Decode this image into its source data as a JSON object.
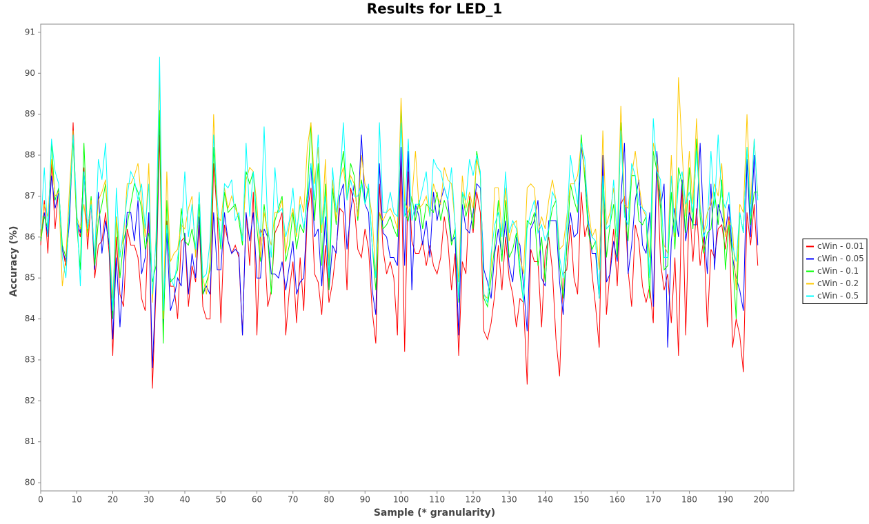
{
  "chart_data": {
    "type": "line",
    "title": "Results for LED_1",
    "x_label": "Sample (* granularity)",
    "y_label": "Accuracy (%)",
    "xlim": [
      0,
      209
    ],
    "ylim": [
      79.8,
      91.2
    ],
    "xticks": [
      0,
      10,
      20,
      30,
      40,
      50,
      60,
      70,
      80,
      90,
      100,
      110,
      120,
      130,
      140,
      150,
      160,
      170,
      180,
      190,
      200
    ],
    "yticks": [
      80,
      81,
      82,
      83,
      84,
      85,
      86,
      87,
      88,
      89,
      90,
      91
    ],
    "grid": false,
    "legend": "right",
    "x": [
      0,
      1,
      2,
      3,
      4,
      5,
      6,
      7,
      8,
      9,
      10,
      11,
      12,
      13,
      14,
      15,
      16,
      17,
      18,
      19,
      20,
      21,
      22,
      23,
      24,
      25,
      26,
      27,
      28,
      29,
      30,
      31,
      32,
      33,
      34,
      35,
      36,
      37,
      38,
      39,
      40,
      41,
      42,
      43,
      44,
      45,
      46,
      47,
      48,
      49,
      50,
      51,
      52,
      53,
      54,
      55,
      56,
      57,
      58,
      59,
      60,
      61,
      62,
      63,
      64,
      65,
      66,
      67,
      68,
      69,
      70,
      71,
      72,
      73,
      74,
      75,
      76,
      77,
      78,
      79,
      80,
      81,
      82,
      83,
      84,
      85,
      86,
      87,
      88,
      89,
      90,
      91,
      92,
      93,
      94,
      95,
      96,
      97,
      98,
      99,
      100,
      101,
      102,
      103,
      104,
      105,
      106,
      107,
      108,
      109,
      110,
      111,
      112,
      113,
      114,
      115,
      116,
      117,
      118,
      119,
      120,
      121,
      122,
      123,
      124,
      125,
      126,
      127,
      128,
      129,
      130,
      131,
      132,
      133,
      134,
      135,
      136,
      137,
      138,
      139,
      140,
      141,
      142,
      143,
      144,
      145,
      146,
      147,
      148,
      149,
      150,
      151,
      152,
      153,
      154,
      155,
      156,
      157,
      158,
      159,
      160,
      161,
      162,
      163,
      164,
      165,
      166,
      167,
      168,
      169,
      170,
      171,
      172,
      173,
      174,
      175,
      176,
      177,
      178,
      179,
      180,
      181,
      182,
      183,
      184,
      185,
      186,
      187,
      188,
      189,
      190,
      191,
      192,
      193,
      194,
      195,
      196,
      197,
      198,
      199
    ],
    "series": [
      {
        "name": "cWin - 0.01",
        "color": "#ff0000",
        "values": [
          85.8,
          86.9,
          85.6,
          87.8,
          86.2,
          87.2,
          85.7,
          85.3,
          86.5,
          88.8,
          86.3,
          86.0,
          87.7,
          85.7,
          86.9,
          85.0,
          85.8,
          85.9,
          86.6,
          85.6,
          83.1,
          86.0,
          84.6,
          84.3,
          86.2,
          85.8,
          85.8,
          85.5,
          84.5,
          84.2,
          86.6,
          82.3,
          84.7,
          88.5,
          83.8,
          86.4,
          84.8,
          84.8,
          84.0,
          85.9,
          86.0,
          84.3,
          85.3,
          84.9,
          86.3,
          84.3,
          84.0,
          84.0,
          87.8,
          86.5,
          83.9,
          86.3,
          85.9,
          85.6,
          85.8,
          85.5,
          83.6,
          86.6,
          85.3,
          87.1,
          83.6,
          86.2,
          86.0,
          84.3,
          84.7,
          86.1,
          86.3,
          86.6,
          83.6,
          84.7,
          85.4,
          83.9,
          85.5,
          84.2,
          86.6,
          87.2,
          85.1,
          84.9,
          84.1,
          85.8,
          84.4,
          84.9,
          85.7,
          86.7,
          86.6,
          84.7,
          87.2,
          86.8,
          85.7,
          85.5,
          86.2,
          85.7,
          84.2,
          83.4,
          87.3,
          85.7,
          85.1,
          85.4,
          85.0,
          83.6,
          88.0,
          83.2,
          87.6,
          85.9,
          85.6,
          85.6,
          85.9,
          85.3,
          85.8,
          85.3,
          85.1,
          85.5,
          86.5,
          85.9,
          84.7,
          85.6,
          83.1,
          85.4,
          85.1,
          87.0,
          86.1,
          87.1,
          86.6,
          83.7,
          83.5,
          83.9,
          84.6,
          85.8,
          84.7,
          86.0,
          85.0,
          84.6,
          83.8,
          84.5,
          84.4,
          82.4,
          85.7,
          85.4,
          85.4,
          83.8,
          85.6,
          86.0,
          85.2,
          83.5,
          82.6,
          85.1,
          85.2,
          86.3,
          85.0,
          84.6,
          87.1,
          86.0,
          86.4,
          85.1,
          84.3,
          83.3,
          87.8,
          84.1,
          85.2,
          86.2,
          84.8,
          86.8,
          87.0,
          85.2,
          84.3,
          86.3,
          85.9,
          84.8,
          84.4,
          84.8,
          83.9,
          87.9,
          85.4,
          84.7,
          85.1,
          83.9,
          85.5,
          83.1,
          87.4,
          83.6,
          86.9,
          85.4,
          86.7,
          85.3,
          86.0,
          83.8,
          85.7,
          85.5,
          86.2,
          86.3,
          85.7,
          86.5,
          83.3,
          84.0,
          83.6,
          82.7,
          86.6,
          85.8,
          86.8,
          85.3
        ]
      },
      {
        "name": "cWin - 0.05",
        "color": "#0000ff",
        "values": [
          85.9,
          86.6,
          86.0,
          87.5,
          86.7,
          87.1,
          85.7,
          85.4,
          86.4,
          88.6,
          86.4,
          86.1,
          87.6,
          86.2,
          86.8,
          85.2,
          87.1,
          85.6,
          86.4,
          85.8,
          83.5,
          85.5,
          83.8,
          85.3,
          86.6,
          86.6,
          85.9,
          86.9,
          85.1,
          85.5,
          86.6,
          82.8,
          84.9,
          89.0,
          83.9,
          86.1,
          84.2,
          84.5,
          85.0,
          84.8,
          86.1,
          84.6,
          85.6,
          85.0,
          86.5,
          84.6,
          84.8,
          84.6,
          86.6,
          85.2,
          85.2,
          86.6,
          85.9,
          85.6,
          85.7,
          85.6,
          83.6,
          86.6,
          85.9,
          86.6,
          85.0,
          85.0,
          86.2,
          86.0,
          85.1,
          85.1,
          85.0,
          85.4,
          84.7,
          85.3,
          85.9,
          84.6,
          84.9,
          85.0,
          86.7,
          87.8,
          86.0,
          86.2,
          84.8,
          86.5,
          84.7,
          85.8,
          85.6,
          87.0,
          87.3,
          85.7,
          86.6,
          87.3,
          86.5,
          88.5,
          86.8,
          86.6,
          84.7,
          84.1,
          87.8,
          86.1,
          86.0,
          85.5,
          85.5,
          85.3,
          88.2,
          85.3,
          88.1,
          84.7,
          86.8,
          86.5,
          85.8,
          86.4,
          85.5,
          87.1,
          86.4,
          86.9,
          87.2,
          86.9,
          85.9,
          86.0,
          83.6,
          86.8,
          86.2,
          86.1,
          86.6,
          87.3,
          87.2,
          85.2,
          84.9,
          84.5,
          85.6,
          86.2,
          85.5,
          86.4,
          85.3,
          84.9,
          86.0,
          85.8,
          84.8,
          83.7,
          86.2,
          86.4,
          86.9,
          85.0,
          84.8,
          86.4,
          86.4,
          86.4,
          84.9,
          84.1,
          85.8,
          86.6,
          86.0,
          86.1,
          88.2,
          87.6,
          86.4,
          85.6,
          85.6,
          84.5,
          88.0,
          84.9,
          85.1,
          85.9,
          85.4,
          86.9,
          88.3,
          85.1,
          85.8,
          86.9,
          87.4,
          85.8,
          85.6,
          86.6,
          84.3,
          88.1,
          86.7,
          87.3,
          83.3,
          85.9,
          86.7,
          86.0,
          87.4,
          85.9,
          86.6,
          86.3,
          86.3,
          88.3,
          86.2,
          85.1,
          87.3,
          85.2,
          86.8,
          86.5,
          86.1,
          86.8,
          85.5,
          85.0,
          84.7,
          84.2,
          87.9,
          86.0,
          88.0,
          85.8
        ]
      },
      {
        "name": "cWin - 0.1",
        "color": "#00ff00",
        "values": [
          85.9,
          86.5,
          86.2,
          88.3,
          86.9,
          87.2,
          85.8,
          85.5,
          86.7,
          88.4,
          86.3,
          85.2,
          88.3,
          86.1,
          87.0,
          85.3,
          86.4,
          86.8,
          87.3,
          85.9,
          84.0,
          86.5,
          85.0,
          85.9,
          86.3,
          86.8,
          87.3,
          87.1,
          86.7,
          85.7,
          86.1,
          84.9,
          85.3,
          89.1,
          83.4,
          86.9,
          84.9,
          85.0,
          85.2,
          86.7,
          85.9,
          85.8,
          86.2,
          85.6,
          86.8,
          84.6,
          84.9,
          85.2,
          88.2,
          86.6,
          85.7,
          87.1,
          86.6,
          86.7,
          86.8,
          86.4,
          85.8,
          87.6,
          87.3,
          87.6,
          86.2,
          85.4,
          86.8,
          86.0,
          84.6,
          86.4,
          86.7,
          87.0,
          85.4,
          85.8,
          86.6,
          85.7,
          86.3,
          86.1,
          87.1,
          88.8,
          86.4,
          87.8,
          85.3,
          87.3,
          84.7,
          87.2,
          86.3,
          87.4,
          88.1,
          86.9,
          87.8,
          87.5,
          86.4,
          87.4,
          86.8,
          87.2,
          85.8,
          84.7,
          86.6,
          86.2,
          86.3,
          86.5,
          86.2,
          86.0,
          89.2,
          86.6,
          86.4,
          87.0,
          86.4,
          86.9,
          86.2,
          86.8,
          86.7,
          86.6,
          87.1,
          86.4,
          86.9,
          86.6,
          85.8,
          86.2,
          84.4,
          87.1,
          86.5,
          86.9,
          86.2,
          88.1,
          87.5,
          84.5,
          84.3,
          85.0,
          85.8,
          86.9,
          85.4,
          86.9,
          85.5,
          85.7,
          86.1,
          85.1,
          84.4,
          86.4,
          86.3,
          86.6,
          85.3,
          86.0,
          84.9,
          86.2,
          86.7,
          86.9,
          85.3,
          84.5,
          85.7,
          87.3,
          86.9,
          86.6,
          88.5,
          87.4,
          86.1,
          85.7,
          85.9,
          84.5,
          87.4,
          85.5,
          86.3,
          86.8,
          85.5,
          88.8,
          86.7,
          85.9,
          87.5,
          87.5,
          86.4,
          86.3,
          86.5,
          84.5,
          88.1,
          87.6,
          86.7,
          85.2,
          85.3,
          87.1,
          85.7,
          87.7,
          87.3,
          86.1,
          87.7,
          86.2,
          88.4,
          86.5,
          85.6,
          86.1,
          86.2,
          87.1,
          86.3,
          87.4,
          85.2,
          86.3,
          85.5,
          84.0,
          86.6,
          86.1,
          88.2,
          86.3,
          87.1,
          87.1
        ]
      },
      {
        "name": "cWin - 0.2",
        "color": "#ffc800",
        "values": [
          86.0,
          86.8,
          86.5,
          87.9,
          87.0,
          87.1,
          84.8,
          85.5,
          87.2,
          88.6,
          86.5,
          86.2,
          86.8,
          86.0,
          86.9,
          85.5,
          86.9,
          87.1,
          87.4,
          86.0,
          84.5,
          86.5,
          85.6,
          86.0,
          87.3,
          87.3,
          87.5,
          87.8,
          86.9,
          86.0,
          87.8,
          84.4,
          86.0,
          89.9,
          84.0,
          87.6,
          85.4,
          85.6,
          85.7,
          86.3,
          86.2,
          86.7,
          87.0,
          85.5,
          87.1,
          85.0,
          84.6,
          85.4,
          89.0,
          86.5,
          86.4,
          87.2,
          86.7,
          87.0,
          86.7,
          86.5,
          86.0,
          87.4,
          87.7,
          87.6,
          86.8,
          85.5,
          86.6,
          86.1,
          85.8,
          86.6,
          86.6,
          86.9,
          85.6,
          86.3,
          86.7,
          86.0,
          87.0,
          86.6,
          88.2,
          88.8,
          87.3,
          88.2,
          86.1,
          87.9,
          85.3,
          87.4,
          86.4,
          87.4,
          87.7,
          86.9,
          87.5,
          87.3,
          86.5,
          88.0,
          87.3,
          87.1,
          86.5,
          85.0,
          86.6,
          86.4,
          86.6,
          86.7,
          86.5,
          86.2,
          89.4,
          86.9,
          86.6,
          86.9,
          88.1,
          86.7,
          86.8,
          87.0,
          86.5,
          87.3,
          87.0,
          86.8,
          87.7,
          87.4,
          87.3,
          86.3,
          84.9,
          87.5,
          86.7,
          87.1,
          86.7,
          87.9,
          87.5,
          84.6,
          84.5,
          85.3,
          87.2,
          87.2,
          86.1,
          87.2,
          85.9,
          86.3,
          86.4,
          85.5,
          85.1,
          87.2,
          87.3,
          87.2,
          86.1,
          86.5,
          86.2,
          86.9,
          87.4,
          86.9,
          85.7,
          85.8,
          86.5,
          87.3,
          87.3,
          87.5,
          88.3,
          87.6,
          86.7,
          86.0,
          86.2,
          85.2,
          88.6,
          86.3,
          86.6,
          87.2,
          86.0,
          89.2,
          86.8,
          86.7,
          87.5,
          88.1,
          87.3,
          86.7,
          86.5,
          85.5,
          88.3,
          87.9,
          87.0,
          85.8,
          85.6,
          88.0,
          86.0,
          89.9,
          88.1,
          86.5,
          88.1,
          86.8,
          88.9,
          86.8,
          86.1,
          86.6,
          86.8,
          87.3,
          87.0,
          87.8,
          86.0,
          86.4,
          86.2,
          84.7,
          86.8,
          86.6,
          89.0,
          86.8,
          88.4,
          87.0
        ]
      },
      {
        "name": "cWin - 0.5",
        "color": "#00ffff",
        "values": [
          86.2,
          87.7,
          86.0,
          88.4,
          87.6,
          87.3,
          85.5,
          85.0,
          86.8,
          88.5,
          86.7,
          84.8,
          87.6,
          86.2,
          86.8,
          85.5,
          87.9,
          87.4,
          88.3,
          86.0,
          84.2,
          87.2,
          85.5,
          86.2,
          87.0,
          87.6,
          87.4,
          86.9,
          87.3,
          86.2,
          87.3,
          84.6,
          85.9,
          90.4,
          84.2,
          86.3,
          85.0,
          84.8,
          85.5,
          86.1,
          87.6,
          86.0,
          86.8,
          85.7,
          87.1,
          85.0,
          85.1,
          85.9,
          88.5,
          86.9,
          85.8,
          87.3,
          87.2,
          87.4,
          86.4,
          86.6,
          85.9,
          88.3,
          86.5,
          87.6,
          86.5,
          86.0,
          88.7,
          86.3,
          85.5,
          87.7,
          86.6,
          86.7,
          86.0,
          86.4,
          87.2,
          86.1,
          86.8,
          86.2,
          86.9,
          87.8,
          86.9,
          88.5,
          86.3,
          87.0,
          85.0,
          87.7,
          86.6,
          87.3,
          88.8,
          86.9,
          87.4,
          87.0,
          87.0,
          87.3,
          86.8,
          87.3,
          85.8,
          85.0,
          88.8,
          86.6,
          86.6,
          87.1,
          86.6,
          86.5,
          88.8,
          86.5,
          88.4,
          86.4,
          86.8,
          86.8,
          87.2,
          87.6,
          86.5,
          87.9,
          87.7,
          87.6,
          87.2,
          86.9,
          87.7,
          86.3,
          84.5,
          87.1,
          86.9,
          87.9,
          87.5,
          88.0,
          87.6,
          84.6,
          84.4,
          85.6,
          86.3,
          86.6,
          86.0,
          87.6,
          86.1,
          86.4,
          86.2,
          85.3,
          84.4,
          86.2,
          86.6,
          86.9,
          86.1,
          86.3,
          85.9,
          86.2,
          87.1,
          86.9,
          85.5,
          85.0,
          86.3,
          88.0,
          87.4,
          86.8,
          88.3,
          87.9,
          86.3,
          86.0,
          85.9,
          84.5,
          87.5,
          86.2,
          86.3,
          87.4,
          86.0,
          88.6,
          86.5,
          86.3,
          87.8,
          87.5,
          86.8,
          86.7,
          86.6,
          85.0,
          88.9,
          87.6,
          87.4,
          85.5,
          85.5,
          87.5,
          86.1,
          87.3,
          87.6,
          86.8,
          87.1,
          86.6,
          88.1,
          86.7,
          86.0,
          86.3,
          88.1,
          86.7,
          88.5,
          87.0,
          86.7,
          87.1,
          85.8,
          85.4,
          86.6,
          86.1,
          88.2,
          86.5,
          88.4,
          86.9
        ]
      }
    ]
  }
}
